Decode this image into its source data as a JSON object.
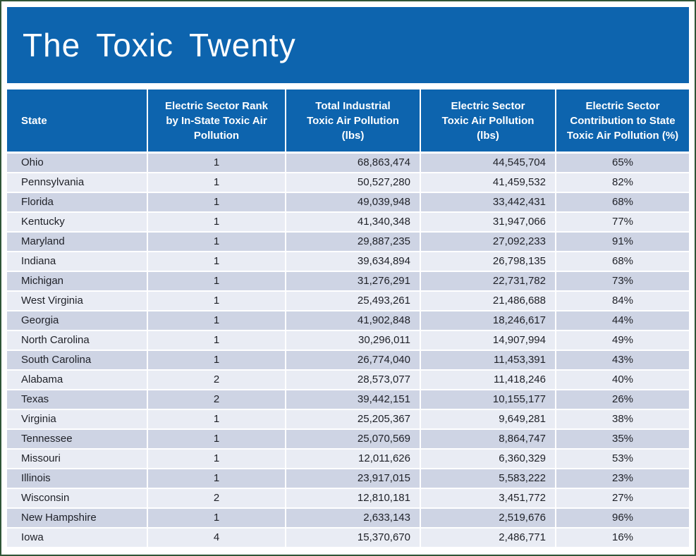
{
  "title": "The Toxic Twenty",
  "colors": {
    "banner_blue": "#0d64ae",
    "row_dark": "#ced4e4",
    "row_light": "#e9ecf4",
    "outer_border_green": "#2f5537",
    "header_text": "#ffffff",
    "data_text": "#1e2027"
  },
  "chart_data": {
    "type": "table",
    "title": "The Toxic Twenty",
    "columns": [
      "State",
      "Electric Sector Rank\nby In-State Toxic Air\nPollution",
      "Total Industrial\nToxic Air Pollution\n(lbs)",
      "Electric Sector\nToxic Air Pollution\n(lbs)",
      "Electric Sector\nContribution to State\nToxic Air Pollution (%)"
    ],
    "rows": [
      [
        "Ohio",
        "1",
        "68,863,474",
        "44,545,704",
        "65%"
      ],
      [
        "Pennsylvania",
        "1",
        "50,527,280",
        "41,459,532",
        "82%"
      ],
      [
        "Florida",
        "1",
        "49,039,948",
        "33,442,431",
        "68%"
      ],
      [
        "Kentucky",
        "1",
        "41,340,348",
        "31,947,066",
        "77%"
      ],
      [
        "Maryland",
        "1",
        "29,887,235",
        "27,092,233",
        "91%"
      ],
      [
        "Indiana",
        "1",
        "39,634,894",
        "26,798,135",
        "68%"
      ],
      [
        "Michigan",
        "1",
        "31,276,291",
        "22,731,782",
        "73%"
      ],
      [
        "West Virginia",
        "1",
        "25,493,261",
        "21,486,688",
        "84%"
      ],
      [
        "Georgia",
        "1",
        "41,902,848",
        "18,246,617",
        "44%"
      ],
      [
        "North Carolina",
        "1",
        "30,296,011",
        "14,907,994",
        "49%"
      ],
      [
        "South Carolina",
        "1",
        "26,774,040",
        "11,453,391",
        "43%"
      ],
      [
        "Alabama",
        "2",
        "28,573,077",
        "11,418,246",
        "40%"
      ],
      [
        "Texas",
        "2",
        "39,442,151",
        "10,155,177",
        "26%"
      ],
      [
        "Virginia",
        "1",
        "25,205,367",
        "9,649,281",
        "38%"
      ],
      [
        "Tennessee",
        "1",
        "25,070,569",
        "8,864,747",
        "35%"
      ],
      [
        "Missouri",
        "1",
        "12,011,626",
        "6,360,329",
        "53%"
      ],
      [
        "Illinois",
        "1",
        "23,917,015",
        "5,583,222",
        "23%"
      ],
      [
        "Wisconsin",
        "2",
        "12,810,181",
        "3,451,772",
        "27%"
      ],
      [
        "New Hampshire",
        "1",
        "2,633,143",
        "2,519,676",
        "96%"
      ],
      [
        "Iowa",
        "4",
        "15,370,670",
        "2,486,771",
        "16%"
      ]
    ]
  }
}
